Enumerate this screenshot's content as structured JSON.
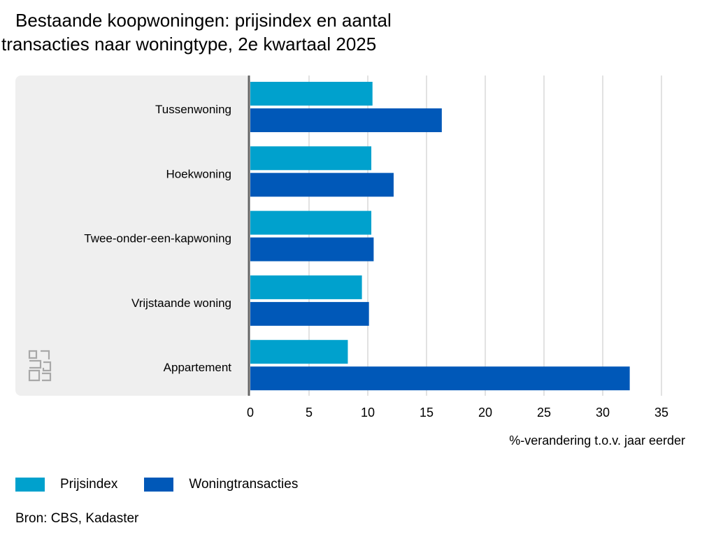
{
  "title_line1": "Bestaande koopwoningen: prijsindex en aantal",
  "title_line2": "transacties naar woningtype, 2e kwartaal 2025",
  "source": "Bron: CBS, Kadaster",
  "logo": "cbs-logo",
  "colors": {
    "prijsindex": "#00a1cd",
    "woningtransacties": "#0058b8",
    "panel": "#efefef",
    "grid": "#d9d9d9",
    "axis": "#666666"
  },
  "chart_data": {
    "type": "bar",
    "orientation": "horizontal",
    "title": "Bestaande koopwoningen: prijsindex en aantal transacties naar woningtype, 2e kwartaal 2025",
    "categories": [
      "Tussenwoning",
      "Hoekwoning",
      "Twee-onder-een-kapwoning",
      "Vrijstaande woning",
      "Appartement"
    ],
    "series": [
      {
        "name": "Prijsindex",
        "values": [
          10.4,
          10.3,
          10.3,
          9.5,
          8.3
        ]
      },
      {
        "name": "Woningtransacties",
        "values": [
          16.3,
          12.2,
          10.5,
          10.1,
          32.3
        ]
      }
    ],
    "xlabel": "%-verandering t.o.v. jaar eerder",
    "ylabel": "",
    "xlim": [
      0,
      35
    ],
    "xticks": [
      "0",
      "5",
      "10",
      "15",
      "20",
      "25",
      "30",
      "35"
    ],
    "grid": true,
    "legend": "bottom-left"
  }
}
